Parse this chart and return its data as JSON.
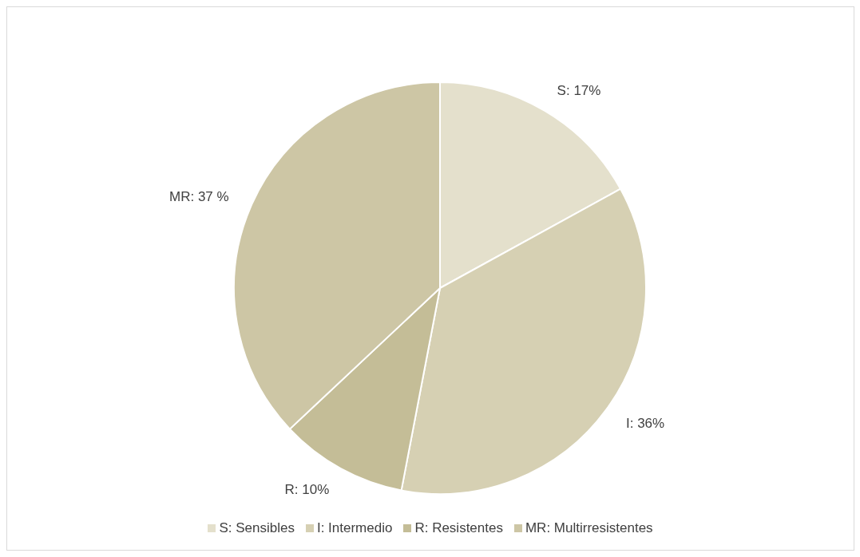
{
  "chart_data": {
    "type": "pie",
    "categories": [
      "S: Sensibles",
      "I: Intermedio",
      "R: Resistentes",
      "MR: Multirresistentes"
    ],
    "values": [
      17,
      36,
      10,
      37
    ],
    "colors": [
      "#e4e0cc",
      "#d6d0b3",
      "#c4bd97",
      "#cdc6a5"
    ],
    "value_labels": [
      "S: 17%",
      "I: 36%",
      "R: 10%",
      "MR: 37 %"
    ],
    "legend": "bottom"
  }
}
